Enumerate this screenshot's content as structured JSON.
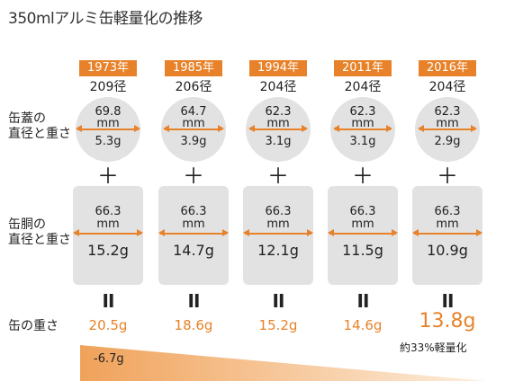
{
  "title": "350mlアルミ缶軽量化の推移",
  "labels": {
    "lid_line1": "缶蓋の",
    "lid_line2": "直径と重さ",
    "body_line1": "缶胴の",
    "body_line2": "直径と重さ",
    "total": "缶の重さ"
  },
  "symbols": {
    "plus": "＋",
    "equals": "II"
  },
  "mm_unit": "mm",
  "columns": [
    {
      "year": "1973年",
      "diameter_code": "209径",
      "lid_diameter": "69.8",
      "lid_weight": "5.3g",
      "body_diameter": "66.3",
      "body_weight": "15.2g",
      "total_weight": "20.5g"
    },
    {
      "year": "1985年",
      "diameter_code": "206径",
      "lid_diameter": "64.7",
      "lid_weight": "3.9g",
      "body_diameter": "66.3",
      "body_weight": "14.7g",
      "total_weight": "18.6g"
    },
    {
      "year": "1994年",
      "diameter_code": "204径",
      "lid_diameter": "62.3",
      "lid_weight": "3.1g",
      "body_diameter": "66.3",
      "body_weight": "12.1g",
      "total_weight": "15.2g"
    },
    {
      "year": "2011年",
      "diameter_code": "204径",
      "lid_diameter": "62.3",
      "lid_weight": "3.1g",
      "body_diameter": "66.3",
      "body_weight": "11.5g",
      "total_weight": "14.6g"
    },
    {
      "year": "2016年",
      "diameter_code": "204径",
      "lid_diameter": "62.3",
      "lid_weight": "2.9g",
      "body_diameter": "66.3",
      "body_weight": "10.9g",
      "total_weight": "13.8g"
    }
  ],
  "reduction_ratio": "約33%軽量化",
  "reduction_label": "-6.7g",
  "colors": {
    "accent": "#e8822a",
    "can_gray": "#e2e2e2"
  }
}
